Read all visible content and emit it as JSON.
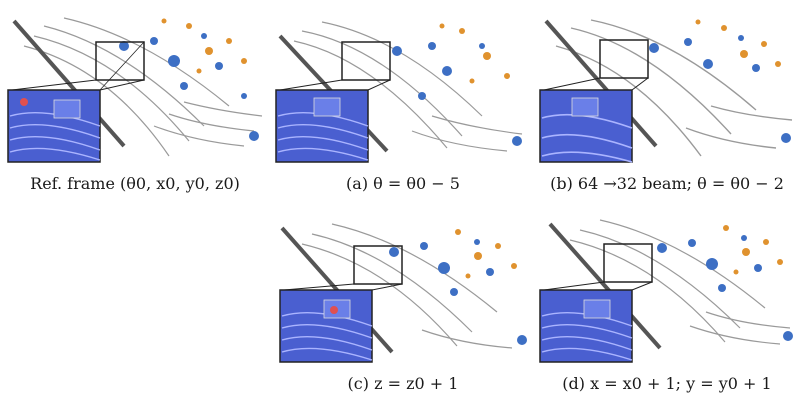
{
  "panels": [
    {
      "id": "ref",
      "caption": "Ref. frame (θ0, x0, y0, z0)"
    },
    {
      "id": "a",
      "caption": "(a) θ = θ0 − 5"
    },
    {
      "id": "b",
      "caption": "(b) 64 →32 beam; θ = θ0 − 2"
    },
    {
      "id": "c",
      "caption": "(c) z = z0 + 1"
    },
    {
      "id": "d",
      "caption": "(d) x = x0 + 1;  y = y0 + 1"
    }
  ],
  "colors": {
    "scan_gray": "#9a9a9a",
    "point_blue": "#3d6fc4",
    "point_orange": "#e0922e",
    "inset_blue": "#4a5fd0",
    "frame": "#222222"
  }
}
